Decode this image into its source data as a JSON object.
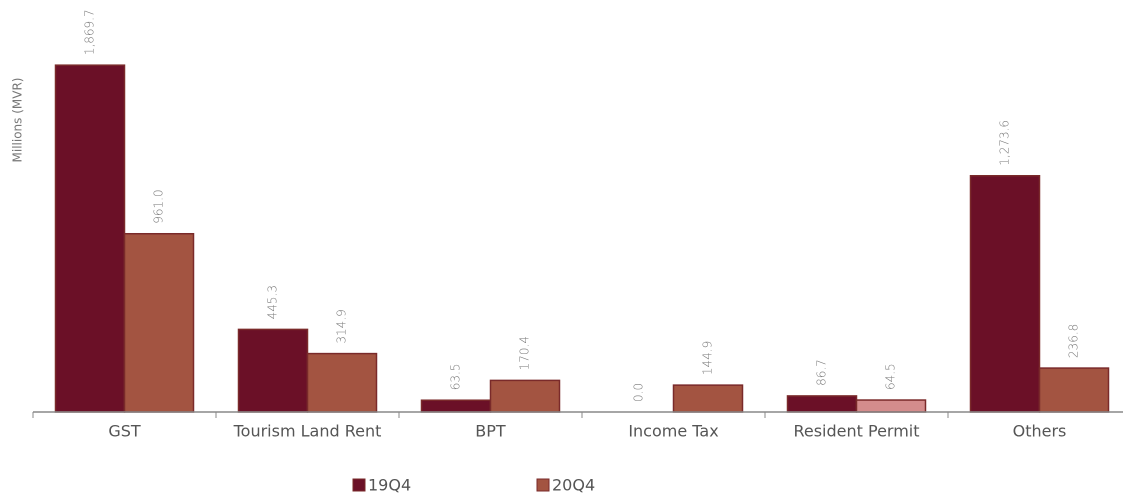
{
  "chart_data": {
    "type": "bar",
    "y_label": "Millions (MVR)",
    "categories": [
      "GST",
      "Tourism Land Rent",
      "BPT",
      "Income Tax",
      "Resident Permit",
      "Others"
    ],
    "series": [
      {
        "name": "19Q4",
        "color": "#6b1027",
        "values": [
          1869.7,
          445.3,
          63.5,
          0.0,
          86.7,
          1273.6
        ],
        "value_labels": [
          "1,869.7",
          "445.3",
          "63.5",
          "0.0",
          "86.7",
          "1,273.6"
        ]
      },
      {
        "name": "20Q4",
        "color": "#a35441",
        "colors": [
          "#a35441",
          "#a35441",
          "#a35441",
          "#a35441",
          "#d48c8c",
          "#a35441"
        ],
        "values": [
          961.0,
          314.9,
          170.4,
          144.9,
          64.5,
          236.8
        ],
        "value_labels": [
          "961.0",
          "314.9",
          "170.4",
          "144.9",
          "64.5",
          "236.8"
        ]
      }
    ],
    "ylim": [
      0,
      2000
    ],
    "grid": false
  }
}
